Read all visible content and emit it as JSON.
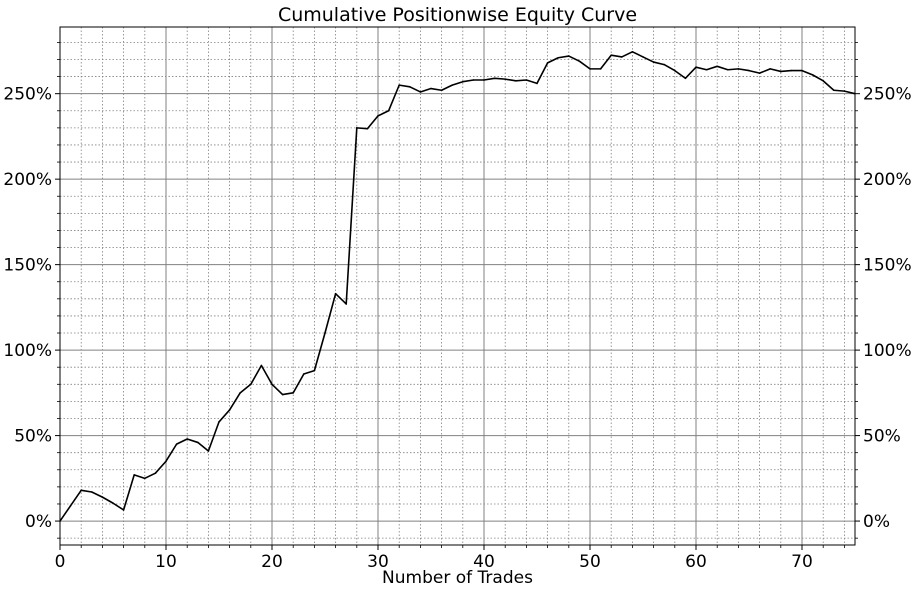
{
  "chart_data": {
    "type": "line",
    "title": "Cumulative Positionwise Equity Curve",
    "xlabel": "Number of Trades",
    "ylabel": "",
    "xlim": [
      0,
      75
    ],
    "ylim": [
      -14,
      289
    ],
    "x_ticks": [
      0,
      10,
      20,
      30,
      40,
      50,
      60,
      70
    ],
    "y_ticks": [
      0,
      50,
      100,
      150,
      200,
      250
    ],
    "y_tick_labels": [
      "0%",
      "50%",
      "100%",
      "150%",
      "200%",
      "250%"
    ],
    "y_ticks_both_sides": true,
    "grid": {
      "major": true,
      "minor": true,
      "minor_per_major_x": 5,
      "minor_per_major_y": 5
    },
    "line_color": "#000000",
    "grid_color": "#808080",
    "series": [
      {
        "x": [
          0,
          1,
          2,
          3,
          4,
          5,
          6,
          7,
          8,
          9,
          10,
          11,
          12,
          13,
          14,
          15,
          16,
          17,
          18,
          19,
          20,
          21,
          22,
          23,
          24,
          25,
          26,
          27,
          28,
          29,
          30,
          31,
          32,
          33,
          34,
          35,
          36,
          37,
          38,
          39,
          40,
          41,
          42,
          43,
          44,
          45,
          46,
          47,
          48,
          49,
          50,
          51,
          52,
          53,
          54,
          55,
          56,
          57,
          58,
          59,
          60,
          61,
          62,
          63,
          64,
          65,
          66,
          67,
          68,
          69,
          70,
          71,
          72,
          73,
          74,
          75
        ],
        "values": [
          0,
          9,
          18,
          17,
          14,
          10.5,
          6.5,
          27,
          25,
          28,
          35,
          45,
          48,
          46,
          41,
          58,
          65,
          75,
          80,
          91,
          80,
          74,
          75,
          86,
          88,
          110,
          133,
          127,
          230,
          229.5,
          237,
          240,
          255,
          254,
          251,
          253,
          252,
          255,
          257,
          258,
          258,
          259,
          258.5,
          257.5,
          258,
          256,
          268,
          271,
          272,
          269,
          264.5,
          264.5,
          272.5,
          271.5,
          274.5,
          271.5,
          268.5,
          267,
          263.5,
          259,
          265.5,
          264,
          266,
          264,
          264.5,
          263.5,
          262,
          264.5,
          263,
          263.5,
          263.5,
          261,
          257.5,
          252,
          251.5,
          250
        ]
      }
    ]
  }
}
